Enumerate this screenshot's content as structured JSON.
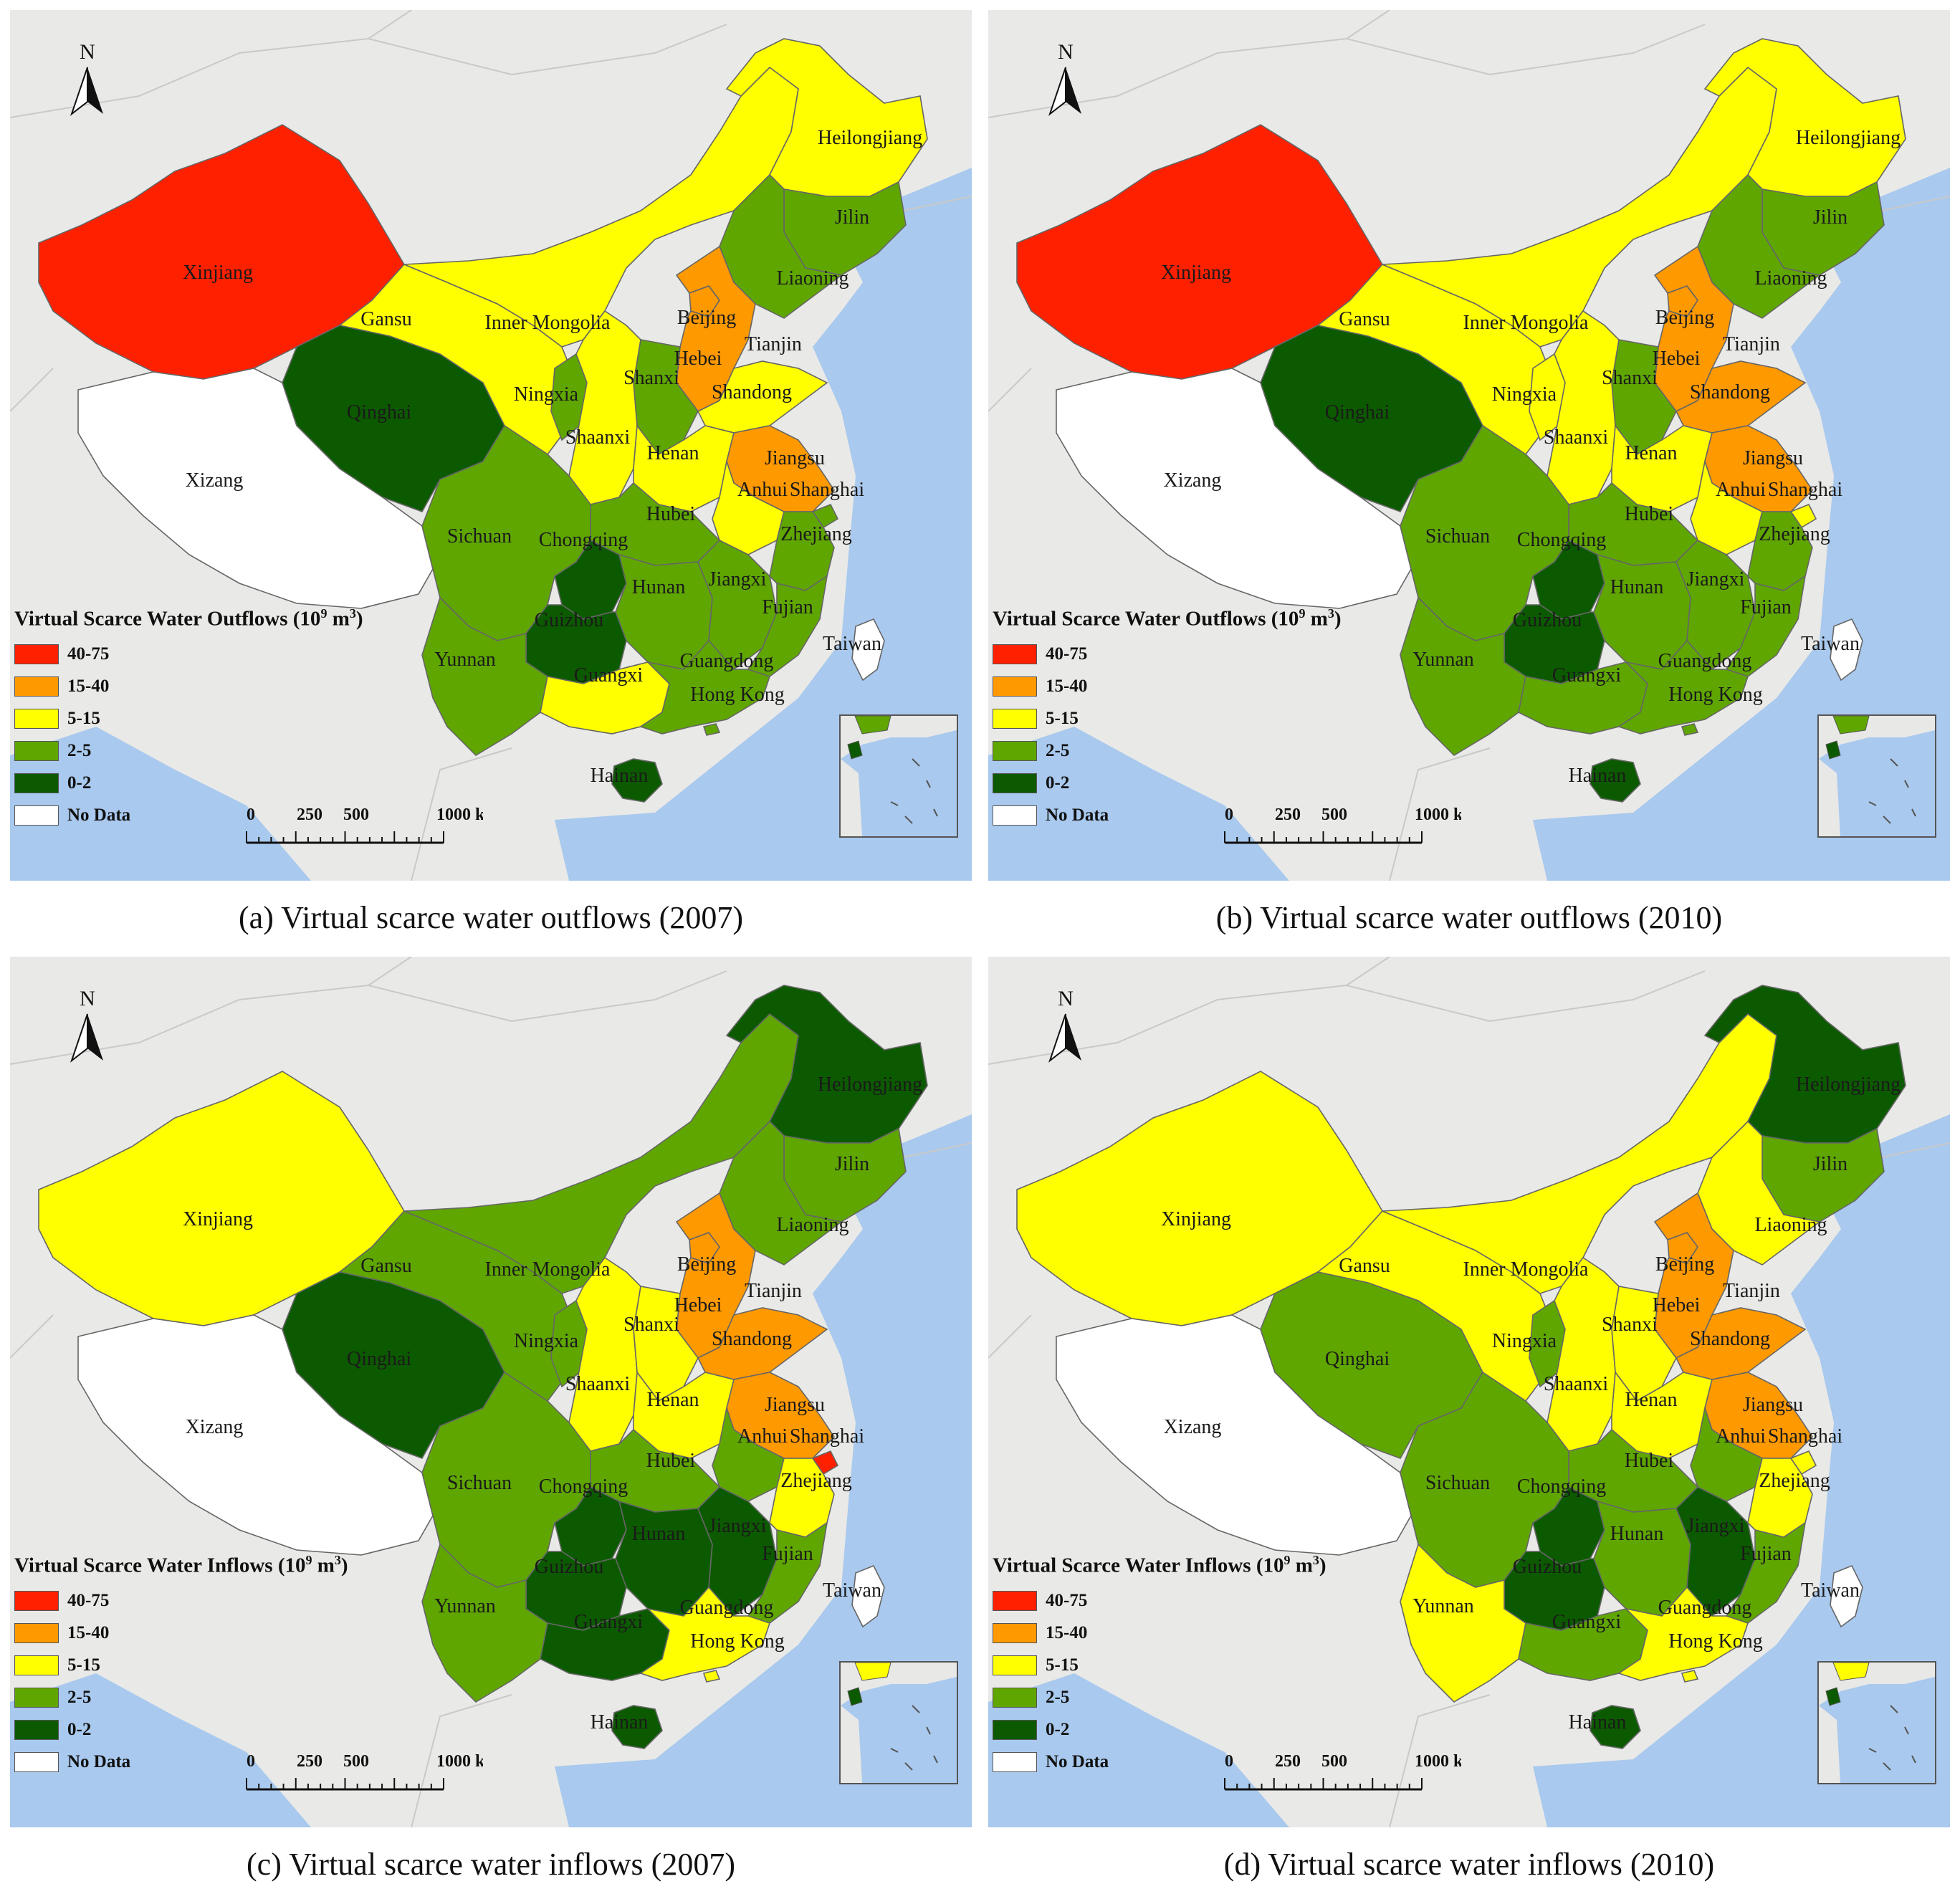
{
  "colors": {
    "40-75": "#ff2000",
    "15-40": "#ff9900",
    "5-15": "#ffff00",
    "2-5": "#5fa600",
    "0-2": "#0c5a00",
    "No Data": "#ffffff",
    "sea": "#a9c9ee",
    "land_other": "#e8e8e6"
  },
  "legend_classes": [
    "40-75",
    "15-40",
    "5-15",
    "2-5",
    "0-2",
    "No Data"
  ],
  "north_label": "N",
  "scale": {
    "ticks": [
      "0",
      "250",
      "500",
      "1000 km"
    ]
  },
  "panels": [
    {
      "caption": "(a) Virtual scarce water outflows (2007)",
      "legend_title": "Virtual Scarce Water Outflows (10",
      "legend_exp1": "9",
      "legend_unit": " m",
      "legend_exp2": "3",
      "legend_close": ")",
      "classes": {
        "Xinjiang": "40-75",
        "Xizang": "No Data",
        "Qinghai": "0-2",
        "Gansu": "5-15",
        "Inner Mongolia": "5-15",
        "Heilongjiang": "5-15",
        "Jilin": "2-5",
        "Liaoning": "2-5",
        "Beijing": "15-40",
        "Tianjin": "2-5",
        "Hebei": "15-40",
        "Shanxi": "2-5",
        "Shandong": "5-15",
        "Ningxia": "2-5",
        "Shaanxi": "5-15",
        "Henan": "5-15",
        "Jiangsu": "15-40",
        "Anhui": "5-15",
        "Shanghai": "2-5",
        "Hubei": "2-5",
        "Sichuan": "2-5",
        "Chongqing": "0-2",
        "Hunan": "2-5",
        "Jiangxi": "2-5",
        "Zhejiang": "2-5",
        "Fujian": "2-5",
        "Guizhou": "0-2",
        "Yunnan": "2-5",
        "Guangxi": "5-15",
        "Guangdong": "2-5",
        "Hong Kong": "2-5",
        "Hainan": "0-2",
        "Taiwan": "No Data"
      }
    },
    {
      "caption": "(b) Virtual scarce water outflows (2010)",
      "legend_title": "Virtual Scarce Water Outflows (10",
      "legend_exp1": "9",
      "legend_unit": " m",
      "legend_exp2": "3",
      "legend_close": ")",
      "classes": {
        "Xinjiang": "40-75",
        "Xizang": "No Data",
        "Qinghai": "0-2",
        "Gansu": "5-15",
        "Inner Mongolia": "5-15",
        "Heilongjiang": "5-15",
        "Jilin": "2-5",
        "Liaoning": "2-5",
        "Beijing": "15-40",
        "Tianjin": "2-5",
        "Hebei": "15-40",
        "Shanxi": "2-5",
        "Shandong": "15-40",
        "Ningxia": "5-15",
        "Shaanxi": "5-15",
        "Henan": "5-15",
        "Jiangsu": "15-40",
        "Anhui": "5-15",
        "Shanghai": "5-15",
        "Hubei": "2-5",
        "Sichuan": "2-5",
        "Chongqing": "0-2",
        "Hunan": "2-5",
        "Jiangxi": "2-5",
        "Zhejiang": "2-5",
        "Fujian": "2-5",
        "Guizhou": "0-2",
        "Yunnan": "2-5",
        "Guangxi": "2-5",
        "Guangdong": "2-5",
        "Hong Kong": "2-5",
        "Hainan": "0-2",
        "Taiwan": "No Data"
      }
    },
    {
      "caption": "(c) Virtual scarce water inflows (2007)",
      "legend_title": "Virtual Scarce Water Inflows (10",
      "legend_exp1": "9",
      "legend_unit": " m",
      "legend_exp2": "3",
      "legend_close": ")",
      "classes": {
        "Xinjiang": "5-15",
        "Xizang": "No Data",
        "Qinghai": "0-2",
        "Gansu": "2-5",
        "Inner Mongolia": "2-5",
        "Heilongjiang": "0-2",
        "Jilin": "2-5",
        "Liaoning": "2-5",
        "Beijing": "15-40",
        "Tianjin": "2-5",
        "Hebei": "15-40",
        "Shanxi": "5-15",
        "Shandong": "15-40",
        "Ningxia": "2-5",
        "Shaanxi": "5-15",
        "Henan": "5-15",
        "Jiangsu": "15-40",
        "Anhui": "2-5",
        "Shanghai": "40-75",
        "Hubei": "2-5",
        "Sichuan": "2-5",
        "Chongqing": "0-2",
        "Hunan": "0-2",
        "Jiangxi": "0-2",
        "Zhejiang": "5-15",
        "Fujian": "2-5",
        "Guizhou": "0-2",
        "Yunnan": "2-5",
        "Guangxi": "0-2",
        "Guangdong": "5-15",
        "Hong Kong": "5-15",
        "Hainan": "0-2",
        "Taiwan": "No Data"
      }
    },
    {
      "caption": "(d) Virtual scarce water inflows (2010)",
      "legend_title": "Virtual Scarce Water Inflows (10",
      "legend_exp1": "9",
      "legend_unit": " m",
      "legend_exp2": "3",
      "legend_close": ")",
      "classes": {
        "Xinjiang": "5-15",
        "Xizang": "No Data",
        "Qinghai": "2-5",
        "Gansu": "5-15",
        "Inner Mongolia": "5-15",
        "Heilongjiang": "0-2",
        "Jilin": "2-5",
        "Liaoning": "5-15",
        "Beijing": "15-40",
        "Tianjin": "5-15",
        "Hebei": "15-40",
        "Shanxi": "5-15",
        "Shandong": "15-40",
        "Ningxia": "2-5",
        "Shaanxi": "5-15",
        "Henan": "5-15",
        "Jiangsu": "15-40",
        "Anhui": "2-5",
        "Shanghai": "5-15",
        "Hubei": "2-5",
        "Sichuan": "2-5",
        "Chongqing": "0-2",
        "Hunan": "2-5",
        "Jiangxi": "0-2",
        "Zhejiang": "5-15",
        "Fujian": "2-5",
        "Guizhou": "0-2",
        "Yunnan": "5-15",
        "Guangxi": "2-5",
        "Guangdong": "5-15",
        "Hong Kong": "5-15",
        "Hainan": "0-2",
        "Taiwan": "No Data"
      }
    }
  ]
}
